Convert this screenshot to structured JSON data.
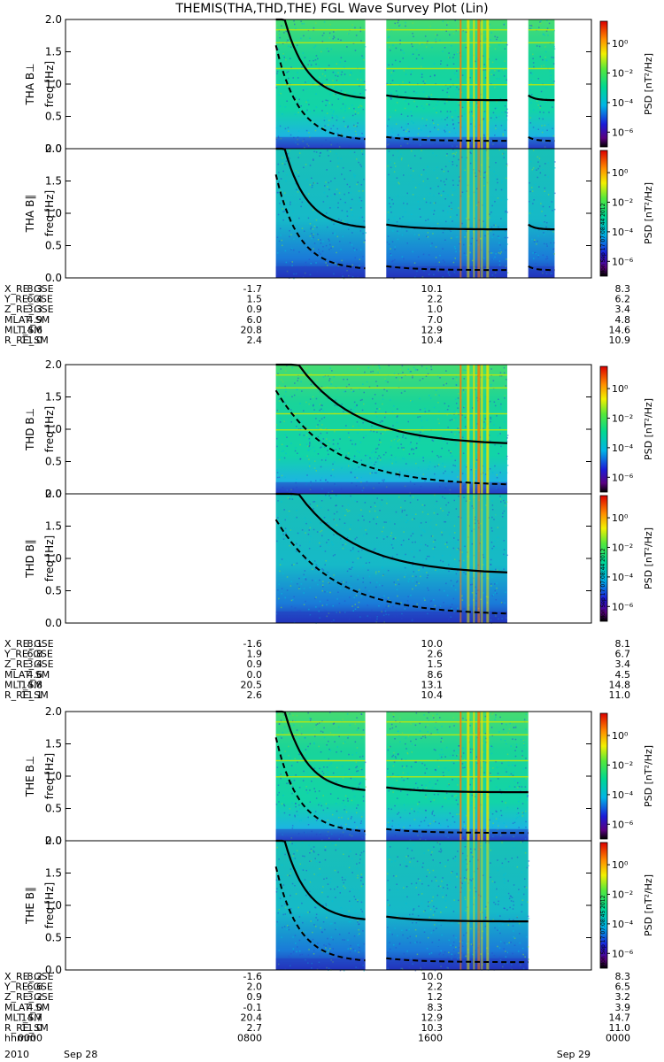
{
  "title": "THEMIS(THA,THD,THE) FGL Wave Survey Plot (Lin)",
  "chart_data": [
    {
      "type": "heatmap",
      "probe": "THA",
      "ylabel": "THA B⊥",
      "units": "freq [Hz]",
      "yticks": [
        "0.0",
        "0.5",
        "1.0",
        "1.5",
        "2.0"
      ],
      "ylim": [
        0,
        2.0
      ],
      "data_intervals_frac": [
        [
          0.4,
          0.57
        ],
        [
          0.61,
          0.84
        ],
        [
          0.88,
          0.93
        ]
      ],
      "colorbar": {
        "label": "PSD [nT²/Hz]",
        "ticks": [
          "10⁰",
          "10⁻²",
          "10⁻⁴",
          "10⁻⁶"
        ],
        "exponents": [
          0,
          -2,
          -4,
          -6
        ]
      }
    },
    {
      "type": "heatmap",
      "probe": "THA",
      "ylabel": "THA B∥",
      "units": "freq [Hz]",
      "yticks": [
        "0.0",
        "0.5",
        "1.0",
        "1.5",
        "2.0"
      ],
      "ylim": [
        0,
        2.0
      ],
      "data_intervals_frac": [
        [
          0.4,
          0.57
        ],
        [
          0.61,
          0.84
        ],
        [
          0.88,
          0.93
        ]
      ],
      "colorbar": {
        "label": "PSD [nT²/Hz]",
        "ticks": [
          "10⁰",
          "10⁻²",
          "10⁻⁴",
          "10⁻⁶"
        ],
        "exponents": [
          0,
          -2,
          -4,
          -6
        ],
        "stamp": "Mon Sep 17 07:08:44 2012"
      }
    },
    {
      "type": "heatmap",
      "probe": "THD",
      "ylabel": "THD B⊥",
      "units": "freq [Hz]",
      "yticks": [
        "0.0",
        "0.5",
        "1.0",
        "1.5",
        "2.0"
      ],
      "ylim": [
        0,
        2.0
      ],
      "data_intervals_frac": [
        [
          0.4,
          0.84
        ]
      ],
      "colorbar": {
        "label": "PSD [nT²/Hz]",
        "ticks": [
          "10⁰",
          "10⁻²",
          "10⁻⁴",
          "10⁻⁶"
        ],
        "exponents": [
          0,
          -2,
          -4,
          -6
        ]
      }
    },
    {
      "type": "heatmap",
      "probe": "THD",
      "ylabel": "THD B∥",
      "units": "freq [Hz]",
      "yticks": [
        "0.0",
        "0.5",
        "1.0",
        "1.5",
        "2.0"
      ],
      "ylim": [
        0,
        2.0
      ],
      "data_intervals_frac": [
        [
          0.4,
          0.84
        ]
      ],
      "colorbar": {
        "label": "PSD [nT²/Hz]",
        "ticks": [
          "10⁰",
          "10⁻²",
          "10⁻⁴",
          "10⁻⁶"
        ],
        "exponents": [
          0,
          -2,
          -4,
          -6
        ],
        "stamp": "Mon Sep 17 07:08:44 2012"
      }
    },
    {
      "type": "heatmap",
      "probe": "THE",
      "ylabel": "THE B⊥",
      "units": "freq [Hz]",
      "yticks": [
        "0.0",
        "0.5",
        "1.0",
        "1.5",
        "2.0"
      ],
      "ylim": [
        0,
        2.0
      ],
      "data_intervals_frac": [
        [
          0.4,
          0.57
        ],
        [
          0.61,
          0.88
        ]
      ],
      "colorbar": {
        "label": "PSD [nT²/Hz]",
        "ticks": [
          "10⁰",
          "10⁻²",
          "10⁻⁴",
          "10⁻⁶"
        ],
        "exponents": [
          0,
          -2,
          -4,
          -6
        ]
      }
    },
    {
      "type": "heatmap",
      "probe": "THE",
      "ylabel": "THE B∥",
      "units": "freq [Hz]",
      "yticks": [
        "0.0",
        "0.5",
        "1.0",
        "1.5",
        "2.0"
      ],
      "ylim": [
        0,
        2.0
      ],
      "data_intervals_frac": [
        [
          0.4,
          0.57
        ],
        [
          0.61,
          0.88
        ]
      ],
      "colorbar": {
        "label": "PSD [nT²/Hz]",
        "ticks": [
          "10⁰",
          "10⁻²",
          "10⁻⁴",
          "10⁻⁶"
        ],
        "exponents": [
          0,
          -2,
          -4,
          -6
        ],
        "stamp": "Mon Sep 17 07:08:45 2012"
      }
    }
  ],
  "ephemeris": [
    {
      "probe": "THA",
      "rows": [
        {
          "label": "X_RE_GSE",
          "values": [
            "8.3",
            "-1.7",
            "10.1",
            "8.3"
          ]
        },
        {
          "label": "Y_RE_GSE",
          "values": [
            "6.4",
            "1.5",
            "2.2",
            "6.2"
          ]
        },
        {
          "label": "Z_RE_GSE",
          "values": [
            "3.3",
            "0.9",
            "1.0",
            "3.4"
          ]
        },
        {
          "label": "MLAT_SM",
          "values": [
            "4.9",
            "6.0",
            "7.0",
            "4.8"
          ]
        },
        {
          "label": "MLT_SM",
          "values": [
            "14.6",
            "20.8",
            "12.9",
            "14.6"
          ]
        },
        {
          "label": "R_RE_SM",
          "values": [
            "11.0",
            "2.4",
            "10.4",
            "10.9"
          ]
        }
      ]
    },
    {
      "probe": "THD",
      "rows": [
        {
          "label": "X_RE_GSE",
          "values": [
            "8.1",
            "-1.6",
            "10.0",
            "8.1"
          ]
        },
        {
          "label": "Y_RE_GSE",
          "values": [
            "6.8",
            "1.9",
            "2.6",
            "6.7"
          ]
        },
        {
          "label": "Z_RE_GSE",
          "values": [
            "3.4",
            "0.9",
            "1.5",
            "3.4"
          ]
        },
        {
          "label": "MLAT_SM",
          "values": [
            "4.6",
            "0.0",
            "8.6",
            "4.5"
          ]
        },
        {
          "label": "MLT_SM",
          "values": [
            "14.8",
            "20.5",
            "13.1",
            "14.8"
          ]
        },
        {
          "label": "R_RE_SM",
          "values": [
            "11.1",
            "2.6",
            "10.4",
            "11.0"
          ]
        }
      ]
    },
    {
      "probe": "THE",
      "rows": [
        {
          "label": "X_RE_GSE",
          "values": [
            "8.2",
            "-1.6",
            "10.0",
            "8.3"
          ]
        },
        {
          "label": "Y_RE_GSE",
          "values": [
            "6.6",
            "2.0",
            "2.2",
            "6.5"
          ]
        },
        {
          "label": "Z_RE_GSE",
          "values": [
            "3.2",
            "0.9",
            "1.2",
            "3.2"
          ]
        },
        {
          "label": "MLAT_SM",
          "values": [
            "4.0",
            "-0.1",
            "8.3",
            "3.9"
          ]
        },
        {
          "label": "MLT_SM",
          "values": [
            "14.7",
            "20.4",
            "12.9",
            "14.7"
          ]
        },
        {
          "label": "R_RE_SM",
          "values": [
            "11.0",
            "2.7",
            "10.3",
            "11.0"
          ]
        },
        {
          "label": "hhmm",
          "values": [
            "0000",
            "0800",
            "1600",
            "0000"
          ]
        }
      ]
    }
  ],
  "time_axis": {
    "year": "2010",
    "start_label": "Sep 28",
    "end_label": "Sep 29"
  }
}
